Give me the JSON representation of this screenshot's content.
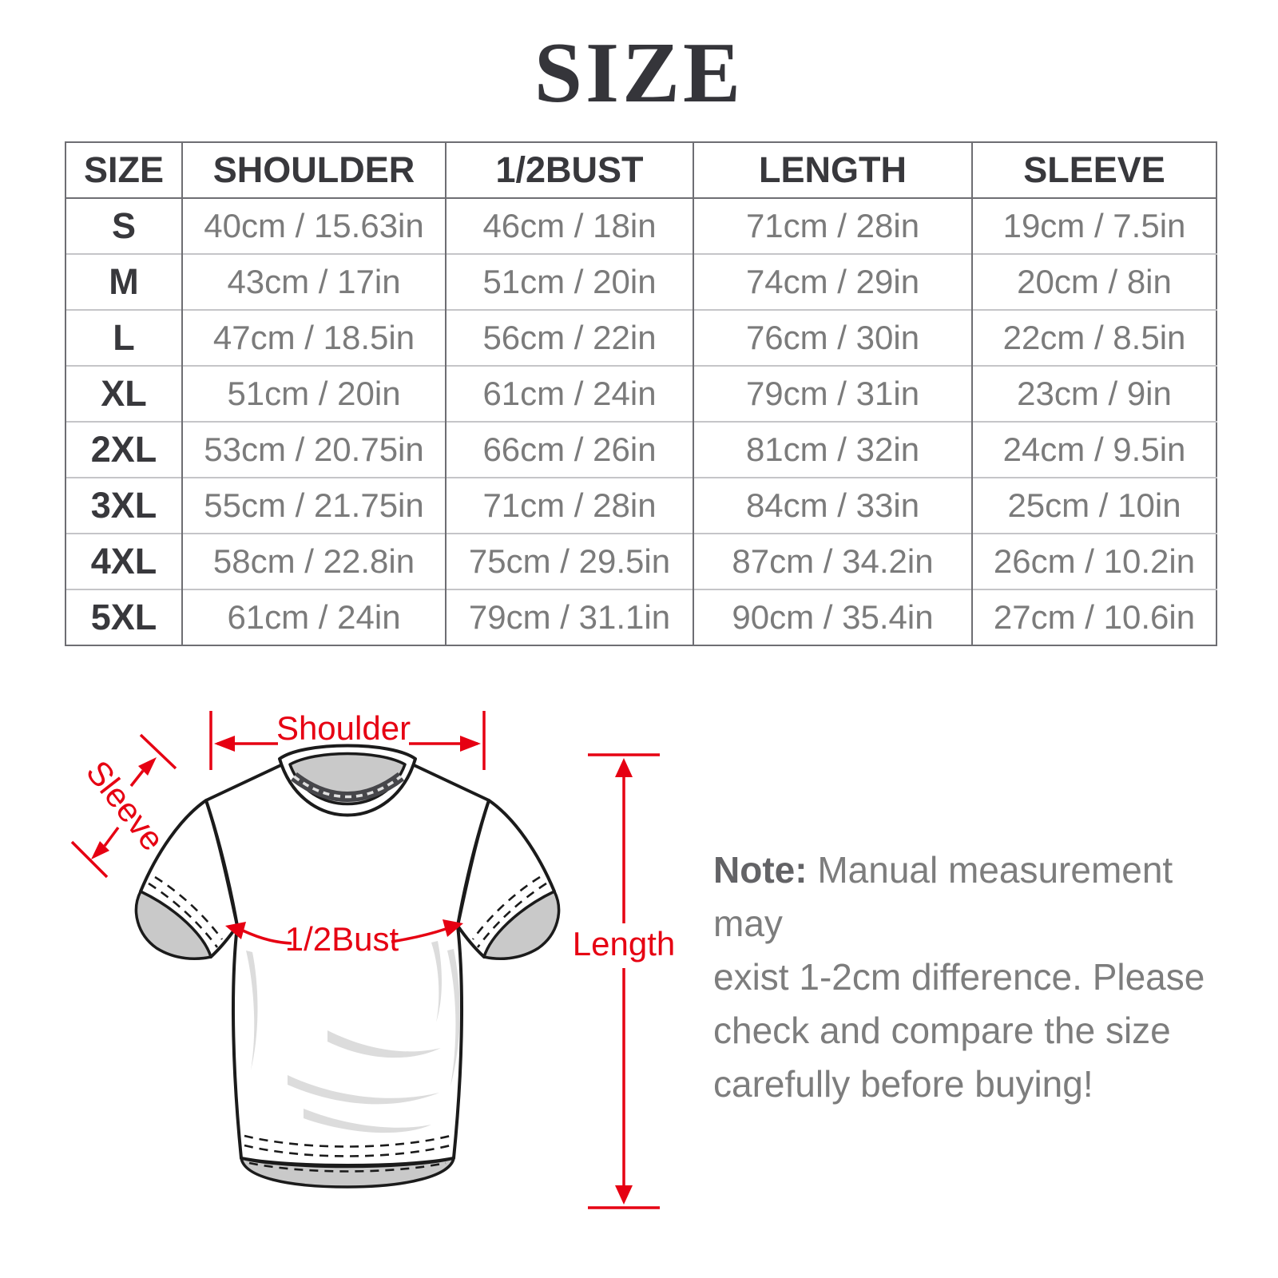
{
  "title": "SIZE",
  "colors": {
    "accent_red": "#e60012",
    "header_text": "#38383c",
    "cell_text": "#7b7b7b",
    "note_text": "#7d7d7d"
  },
  "table": {
    "headers": [
      "SIZE",
      "SHOULDER",
      "1/2BUST",
      "LENGTH",
      "SLEEVE"
    ],
    "rows": [
      [
        "S",
        "40cm / 15.63in",
        "46cm / 18in",
        "71cm / 28in",
        "19cm / 7.5in"
      ],
      [
        "M",
        "43cm / 17in",
        "51cm / 20in",
        "74cm / 29in",
        "20cm / 8in"
      ],
      [
        "L",
        "47cm / 18.5in",
        "56cm / 22in",
        "76cm / 30in",
        "22cm / 8.5in"
      ],
      [
        "XL",
        "51cm / 20in",
        "61cm / 24in",
        "79cm / 31in",
        "23cm / 9in"
      ],
      [
        "2XL",
        "53cm / 20.75in",
        "66cm / 26in",
        "81cm / 32in",
        "24cm / 9.5in"
      ],
      [
        "3XL",
        "55cm / 21.75in",
        "71cm / 28in",
        "84cm / 33in",
        "25cm / 10in"
      ],
      [
        "4XL",
        "58cm / 22.8in",
        "75cm / 29.5in",
        "87cm / 34.2in",
        "26cm / 10.2in"
      ],
      [
        "5XL",
        "61cm / 24in",
        "79cm / 31.1in",
        "90cm / 35.4in",
        "27cm / 10.6in"
      ]
    ]
  },
  "diagram": {
    "labels": {
      "shoulder": "Shoulder",
      "sleeve": "Sleeve",
      "bust": "1/2Bust",
      "length": "Length"
    }
  },
  "note": {
    "label": "Note:",
    "lines": [
      "Manual measurement may",
      "exist 1-2cm difference. Please",
      "check and compare the size",
      "carefully before buying!"
    ]
  }
}
